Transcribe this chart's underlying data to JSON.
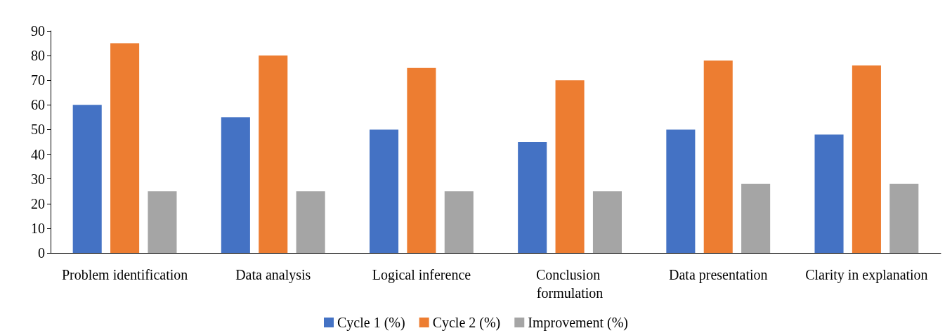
{
  "chart_data": {
    "type": "bar",
    "categories": [
      "Problem identification",
      "Data analysis",
      "Logical inference",
      "Conclusion formulation",
      "Data presentation",
      "Clarity in explanation"
    ],
    "series": [
      {
        "name": "Cycle 1 (%)",
        "color": "#4472c4",
        "values": [
          60,
          55,
          50,
          45,
          50,
          48
        ]
      },
      {
        "name": "Cycle 2 (%)",
        "color": "#ed7d31",
        "values": [
          85,
          80,
          75,
          70,
          78,
          76
        ]
      },
      {
        "name": "Improvement (%)",
        "color": "#a5a5a5",
        "values": [
          25,
          25,
          25,
          25,
          28,
          28
        ]
      }
    ],
    "ylim": [
      0,
      90
    ],
    "yticks": [
      0,
      10,
      20,
      30,
      40,
      50,
      60,
      70,
      80,
      90
    ],
    "grid": false,
    "legend": "bottom"
  }
}
